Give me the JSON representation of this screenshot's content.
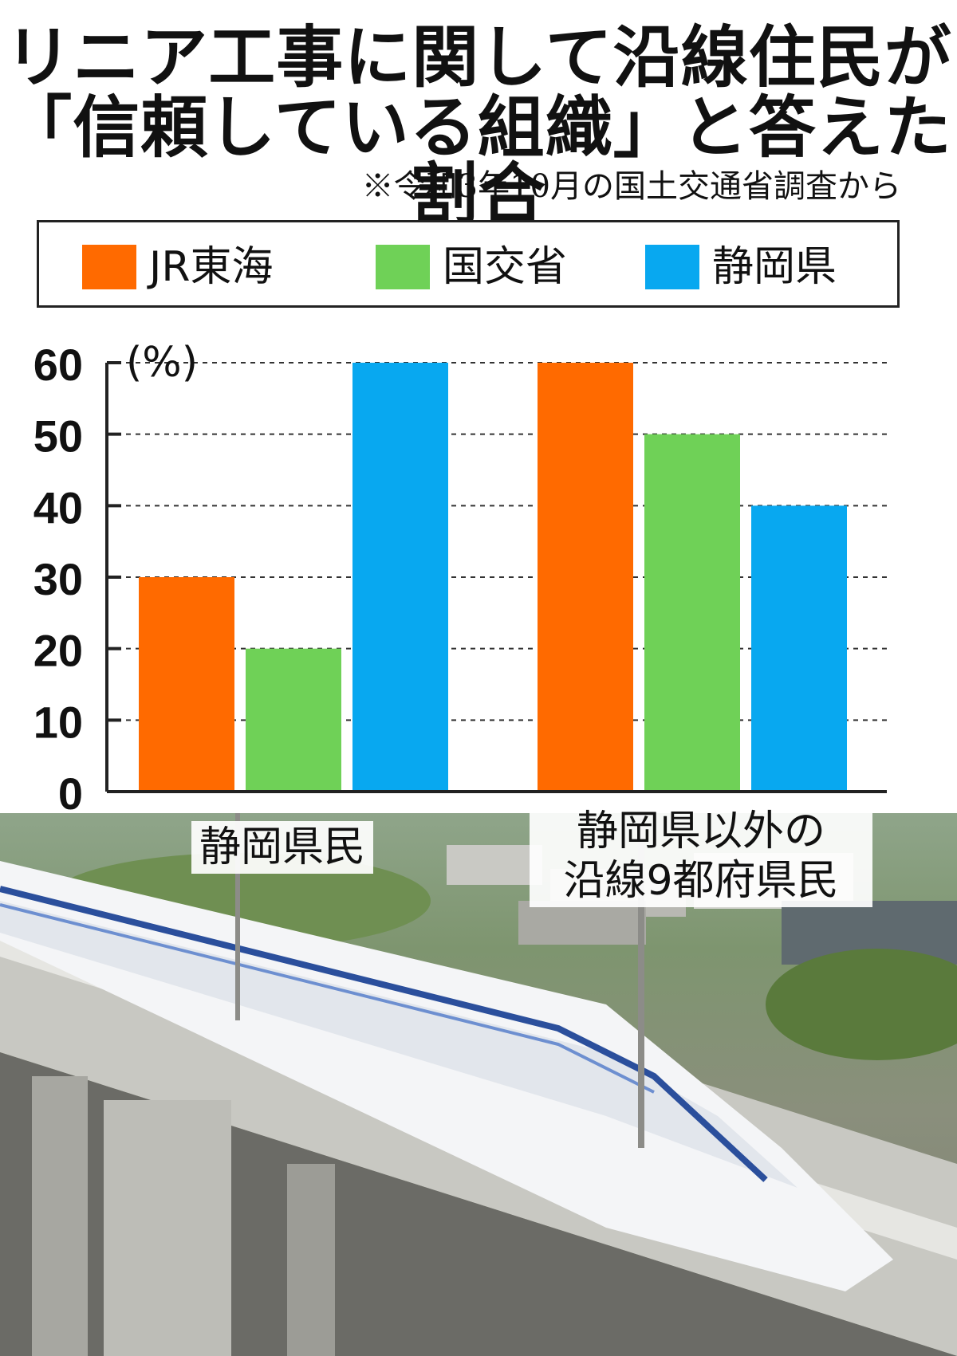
{
  "title_line1": "リニア工事に関して沿線住民が",
  "title_line2": "「信頼している組織」と答えた割合",
  "source_note": "※令和3年10月の国土交通省調査から",
  "colors": {
    "jr": "#ff6a00",
    "mlit": "#6fd157",
    "pref": "#08a8f0"
  },
  "chart_data": {
    "type": "bar",
    "title": "リニア工事に関して沿線住民が「信頼している組織」と答えた割合",
    "ylabel": "(%)",
    "ylim": [
      0,
      60
    ],
    "yticks": [
      0,
      10,
      20,
      30,
      40,
      50,
      60
    ],
    "grid": true,
    "legend_position": "top",
    "categories": [
      "静岡県民",
      "静岡県以外の\n沿線9都府県民"
    ],
    "series": [
      {
        "name": "JR東海",
        "color": "#ff6a00",
        "values": [
          30,
          60
        ]
      },
      {
        "name": "国交省",
        "color": "#6fd157",
        "values": [
          20,
          50
        ]
      },
      {
        "name": "静岡県",
        "color": "#08a8f0",
        "values": [
          60,
          40
        ]
      }
    ]
  }
}
